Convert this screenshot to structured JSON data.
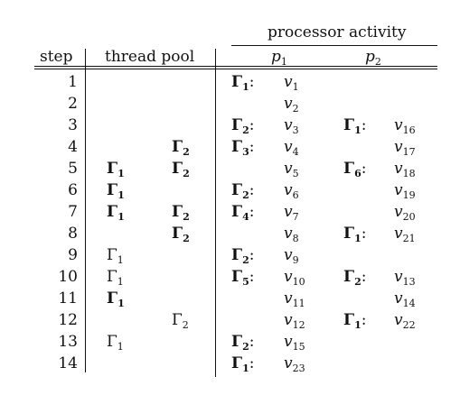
{
  "header": {
    "group": "processor activity",
    "step": "step",
    "pool": "thread pool",
    "p1": {
      "base": "p",
      "sub": "1"
    },
    "p2": {
      "base": "p",
      "sub": "2"
    }
  },
  "rows": [
    {
      "step": "1",
      "pool1": null,
      "pool2": null,
      "p1": {
        "gamma": {
          "sub": "1",
          "bold": true
        },
        "v": "1"
      },
      "p2": null
    },
    {
      "step": "2",
      "pool1": null,
      "pool2": null,
      "p1": {
        "gamma": null,
        "v": "2"
      },
      "p2": null
    },
    {
      "step": "3",
      "pool1": null,
      "pool2": null,
      "p1": {
        "gamma": {
          "sub": "2",
          "bold": true
        },
        "v": "3"
      },
      "p2": {
        "gamma": {
          "sub": "1",
          "bold": true
        },
        "v": "16"
      }
    },
    {
      "step": "4",
      "pool1": null,
      "pool2": {
        "sub": "2",
        "bold": true
      },
      "p1": {
        "gamma": {
          "sub": "3",
          "bold": true
        },
        "v": "4"
      },
      "p2": {
        "gamma": null,
        "v": "17"
      }
    },
    {
      "step": "5",
      "pool1": {
        "sub": "1",
        "bold": true
      },
      "pool2": {
        "sub": "2",
        "bold": true
      },
      "p1": {
        "gamma": null,
        "v": "5"
      },
      "p2": {
        "gamma": {
          "sub": "6",
          "bold": true
        },
        "v": "18"
      }
    },
    {
      "step": "6",
      "pool1": {
        "sub": "1",
        "bold": true
      },
      "pool2": null,
      "p1": {
        "gamma": {
          "sub": "2",
          "bold": true
        },
        "v": "6"
      },
      "p2": {
        "gamma": null,
        "v": "19"
      }
    },
    {
      "step": "7",
      "pool1": {
        "sub": "1",
        "bold": true
      },
      "pool2": {
        "sub": "2",
        "bold": true
      },
      "p1": {
        "gamma": {
          "sub": "4",
          "bold": true
        },
        "v": "7"
      },
      "p2": {
        "gamma": null,
        "v": "20"
      }
    },
    {
      "step": "8",
      "pool1": null,
      "pool2": {
        "sub": "2",
        "bold": true
      },
      "p1": {
        "gamma": null,
        "v": "8"
      },
      "p2": {
        "gamma": {
          "sub": "1",
          "bold": true
        },
        "v": "21"
      }
    },
    {
      "step": "9",
      "pool1": {
        "sub": "1",
        "bold": false
      },
      "pool2": null,
      "p1": {
        "gamma": {
          "sub": "2",
          "bold": true
        },
        "v": "9"
      },
      "p2": null
    },
    {
      "step": "10",
      "pool1": {
        "sub": "1",
        "bold": false
      },
      "pool2": null,
      "p1": {
        "gamma": {
          "sub": "5",
          "bold": true
        },
        "v": "10"
      },
      "p2": {
        "gamma": {
          "sub": "2",
          "bold": true
        },
        "v": "13"
      }
    },
    {
      "step": "11",
      "pool1": {
        "sub": "1",
        "bold": true
      },
      "pool2": null,
      "p1": {
        "gamma": null,
        "v": "11"
      },
      "p2": {
        "gamma": null,
        "v": "14"
      }
    },
    {
      "step": "12",
      "pool1": null,
      "pool2": {
        "sub": "2",
        "bold": false
      },
      "p1": {
        "gamma": null,
        "v": "12"
      },
      "p2": {
        "gamma": {
          "sub": "1",
          "bold": true
        },
        "v": "22"
      }
    },
    {
      "step": "13",
      "pool1": {
        "sub": "1",
        "bold": false
      },
      "pool2": null,
      "p1": {
        "gamma": {
          "sub": "2",
          "bold": true
        },
        "v": "15"
      },
      "p2": null
    },
    {
      "step": "14",
      "pool1": null,
      "pool2": null,
      "p1": {
        "gamma": {
          "sub": "1",
          "bold": true
        },
        "v": "23"
      },
      "p2": null
    }
  ]
}
